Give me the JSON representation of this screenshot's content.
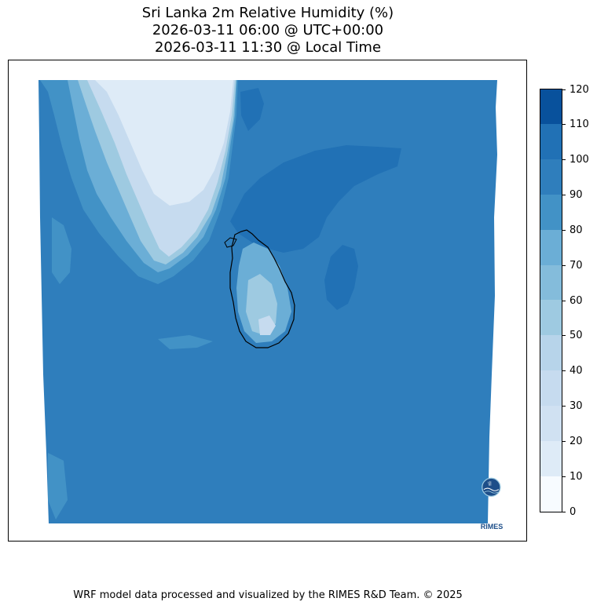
{
  "title": {
    "line1": "Sri Lanka 2m Relative Humidity (%)",
    "line2": "2026-03-11 06:00 @ UTC+00:00",
    "line3": "2026-03-11 11:30 @ Local Time"
  },
  "colorbar": {
    "ticks": [
      "0",
      "10",
      "20",
      "30",
      "40",
      "50",
      "60",
      "70",
      "80",
      "90",
      "100",
      "110",
      "120"
    ],
    "levels": [
      0,
      10,
      20,
      30,
      40,
      50,
      60,
      70,
      80,
      90,
      100,
      110,
      120
    ],
    "colors": [
      "#f7fbff",
      "#deebf7",
      "#d0e1f2",
      "#c6dbef",
      "#b7d4ea",
      "#9ecae1",
      "#84bcdb",
      "#6baed6",
      "#4292c6",
      "#2f7ebc",
      "#2171b5",
      "#08519c",
      "#08306b"
    ]
  },
  "logo": {
    "text": "RIMES"
  },
  "footer": {
    "credit": "WRF model data processed and visualized by the RIMES R&D Team. © 2025"
  }
}
